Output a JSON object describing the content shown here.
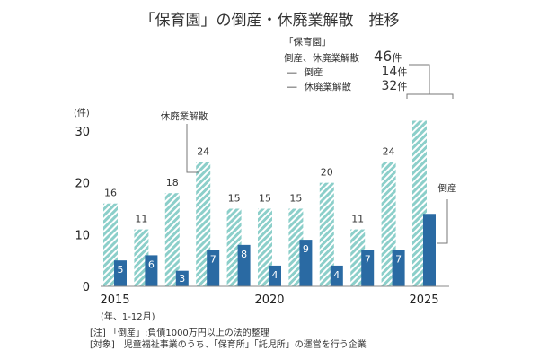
{
  "title": "「保育園」の倒産・休廃業解散　推移",
  "legend": {
    "heading_line1": "「保育園」",
    "heading_line2": "倒産、休廃業解散",
    "total_value": "46",
    "unit": "件",
    "rows": [
      {
        "dash": "―",
        "label": "倒産",
        "value": "14"
      },
      {
        "dash": "―",
        "label": "休廃業解散",
        "value": "32"
      }
    ]
  },
  "notes": {
    "line1": "[注] 「倒産」:負債1000万円以上の法的整理",
    "line2": "[対象]　児童福祉事業のうち、「保育所」「託児所」の運営を行う企業"
  },
  "chart_data": {
    "type": "bar",
    "title": "「保育園」の倒産・休廃業解散　推移",
    "ylabel": "(件)",
    "xlabel": "(年、1-12月)",
    "ylim": [
      0,
      30
    ],
    "yticks": [
      0,
      10,
      20,
      30
    ],
    "categories": [
      "2015",
      "2016",
      "2017",
      "2018",
      "2019",
      "2020",
      "2021",
      "2022",
      "2023",
      "2024",
      "2025"
    ],
    "xtick_labels": {
      "0": "2015",
      "5": "2020",
      "10": "2025"
    },
    "series": [
      {
        "name": "休廃業解散",
        "style": "hatched",
        "color": "#8ccfca",
        "values": [
          16,
          11,
          18,
          24,
          15,
          15,
          15,
          20,
          11,
          24,
          32
        ],
        "labels_shown": [
          true,
          true,
          true,
          true,
          true,
          true,
          true,
          true,
          true,
          true,
          false
        ]
      },
      {
        "name": "倒産",
        "style": "solid",
        "color": "#2a6aa3",
        "values": [
          5,
          6,
          3,
          7,
          8,
          4,
          9,
          4,
          7,
          7,
          14
        ],
        "labels_shown": [
          true,
          true,
          true,
          true,
          true,
          true,
          true,
          true,
          true,
          true,
          false
        ]
      }
    ],
    "grid": false,
    "callouts": [
      "休廃業解散",
      "倒産"
    ]
  }
}
